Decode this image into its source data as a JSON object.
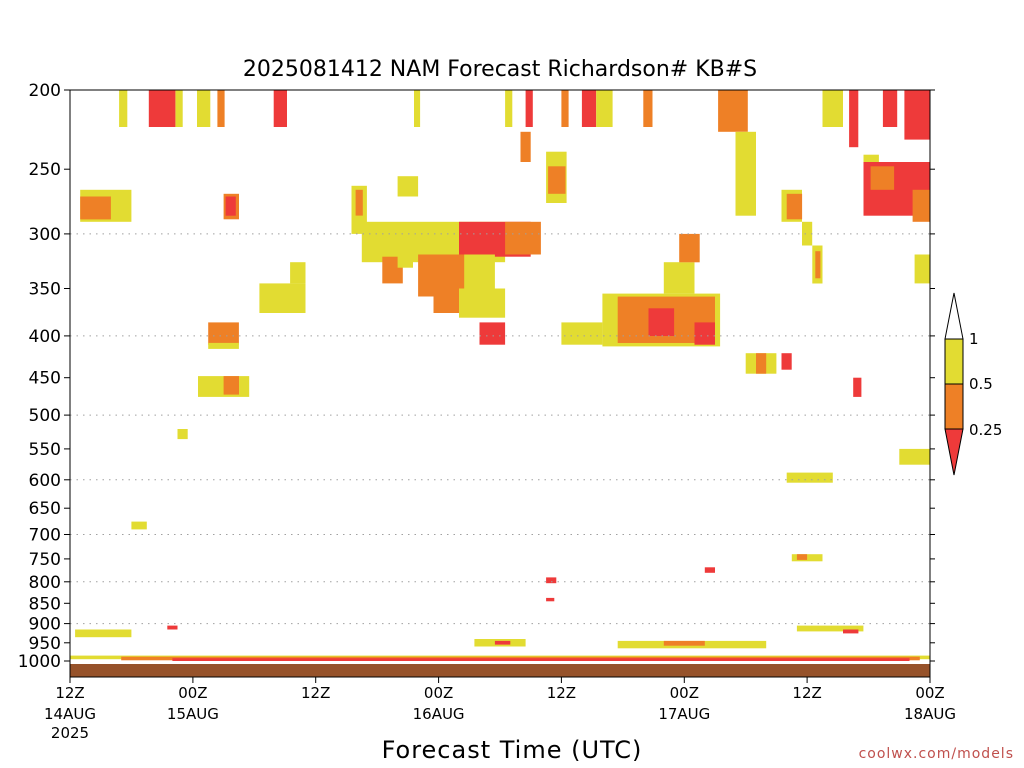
{
  "chart_data": {
    "type": "heatmap",
    "title": "2025081412 NAM Forecast Richardson# KB#S",
    "xlabel": "Forecast Time (UTC)",
    "ylabel": "",
    "y_axis": {
      "reversed": true,
      "ticks": [
        "200",
        "250",
        "300",
        "350",
        "400",
        "450",
        "500",
        "550",
        "600",
        "650",
        "700",
        "750",
        "800",
        "850",
        "900",
        "950",
        "1000"
      ],
      "dotted_grid": [
        "300",
        "400",
        "500",
        "600",
        "700",
        "800",
        "900"
      ]
    },
    "x_axis": {
      "range_hours": [
        0,
        84
      ],
      "ticks": [
        {
          "hour": 0,
          "label": "12Z",
          "date": "14AUG",
          "year": "2025"
        },
        {
          "hour": 12,
          "label": "00Z",
          "date": "15AUG",
          "year": ""
        },
        {
          "hour": 24,
          "label": "12Z",
          "date": "",
          "year": ""
        },
        {
          "hour": 36,
          "label": "00Z",
          "date": "16AUG",
          "year": ""
        },
        {
          "hour": 48,
          "label": "12Z",
          "date": "",
          "year": ""
        },
        {
          "hour": 60,
          "label": "00Z",
          "date": "17AUG",
          "year": ""
        },
        {
          "hour": 72,
          "label": "12Z",
          "date": "",
          "year": ""
        },
        {
          "hour": 84,
          "label": "00Z",
          "date": "18AUG",
          "year": ""
        }
      ]
    },
    "colorbar": {
      "labels": [
        "1",
        "0.5",
        "0.25"
      ],
      "bins": [
        {
          "range": "0.5-1",
          "color": "#e2dc32"
        },
        {
          "range": "0.25-0.5",
          "color": "#ee8026"
        },
        {
          "range": "<0.25",
          "color": "#ee3a3a"
        }
      ],
      "over_color": "#ffffff"
    },
    "ground_color": "#96522a",
    "regions": [
      {
        "level": "yellow",
        "x": [
          4.8,
          5.6
        ],
        "p": [
          200,
          222
        ]
      },
      {
        "level": "red",
        "x": [
          7.7,
          10.3
        ],
        "p": [
          200,
          222
        ]
      },
      {
        "level": "yellow",
        "x": [
          10.3,
          11.0
        ],
        "p": [
          200,
          222
        ]
      },
      {
        "level": "yellow",
        "x": [
          12.4,
          13.7
        ],
        "p": [
          200,
          222
        ]
      },
      {
        "level": "orange",
        "x": [
          14.4,
          15.1
        ],
        "p": [
          200,
          222
        ]
      },
      {
        "level": "red",
        "x": [
          19.9,
          21.2
        ],
        "p": [
          200,
          222
        ]
      },
      {
        "level": "yellow",
        "x": [
          33.6,
          34.2
        ],
        "p": [
          200,
          222
        ]
      },
      {
        "level": "yellow",
        "x": [
          42.5,
          43.2
        ],
        "p": [
          200,
          222
        ]
      },
      {
        "level": "red",
        "x": [
          44.5,
          45.2
        ],
        "p": [
          200,
          222
        ]
      },
      {
        "level": "orange",
        "x": [
          48.0,
          48.7
        ],
        "p": [
          200,
          222
        ]
      },
      {
        "level": "red",
        "x": [
          50.0,
          51.4
        ],
        "p": [
          200,
          222
        ]
      },
      {
        "level": "yellow",
        "x": [
          51.4,
          53.0
        ],
        "p": [
          200,
          222
        ]
      },
      {
        "level": "orange",
        "x": [
          56.0,
          56.9
        ],
        "p": [
          200,
          222
        ]
      },
      {
        "level": "orange",
        "x": [
          63.3,
          66.2
        ],
        "p": [
          200,
          225
        ]
      },
      {
        "level": "yellow",
        "x": [
          73.5,
          75.5
        ],
        "p": [
          200,
          222
        ]
      },
      {
        "level": "red",
        "x": [
          76.1,
          77.0
        ],
        "p": [
          200,
          235
        ]
      },
      {
        "level": "red",
        "x": [
          79.4,
          80.8
        ],
        "p": [
          200,
          222
        ]
      },
      {
        "level": "red",
        "x": [
          81.5,
          84.0
        ],
        "p": [
          200,
          230
        ]
      },
      {
        "level": "yellow",
        "x": [
          65.0,
          67.0
        ],
        "p": [
          225,
          285
        ]
      },
      {
        "level": "orange",
        "x": [
          44.0,
          45.0
        ],
        "p": [
          225,
          245
        ]
      },
      {
        "level": "yellow",
        "x": [
          46.5,
          48.5
        ],
        "p": [
          238,
          275
        ]
      },
      {
        "level": "orange",
        "x": [
          46.7,
          48.4
        ],
        "p": [
          248,
          268
        ]
      },
      {
        "level": "yellow",
        "x": [
          1.0,
          6.0
        ],
        "p": [
          265,
          290
        ]
      },
      {
        "level": "orange",
        "x": [
          1.0,
          4.0
        ],
        "p": [
          270,
          288
        ]
      },
      {
        "level": "orange",
        "x": [
          15.0,
          16.5
        ],
        "p": [
          268,
          288
        ]
      },
      {
        "level": "red",
        "x": [
          15.2,
          16.2
        ],
        "p": [
          270,
          285
        ]
      },
      {
        "level": "yellow",
        "x": [
          27.5,
          29.0
        ],
        "p": [
          262,
          300
        ]
      },
      {
        "level": "orange",
        "x": [
          27.9,
          28.6
        ],
        "p": [
          265,
          285
        ]
      },
      {
        "level": "yellow",
        "x": [
          32.0,
          34.0
        ],
        "p": [
          255,
          270
        ]
      },
      {
        "level": "yellow",
        "x": [
          28.5,
          42.5
        ],
        "p": [
          290,
          325
        ]
      },
      {
        "level": "red",
        "x": [
          38.0,
          45.0
        ],
        "p": [
          290,
          320
        ]
      },
      {
        "level": "orange",
        "x": [
          42.5,
          46.0
        ],
        "p": [
          290,
          318
        ]
      },
      {
        "level": "yellow",
        "x": [
          36.0,
          41.5
        ],
        "p": [
          318,
          350
        ]
      },
      {
        "level": "orange",
        "x": [
          34.0,
          38.5
        ],
        "p": [
          318,
          358
        ]
      },
      {
        "level": "orange",
        "x": [
          35.5,
          39.0
        ],
        "p": [
          355,
          375
        ]
      },
      {
        "level": "yellow",
        "x": [
          38.0,
          42.5
        ],
        "p": [
          350,
          380
        ]
      },
      {
        "level": "red",
        "x": [
          40.0,
          42.5
        ],
        "p": [
          385,
          410
        ]
      },
      {
        "level": "orange",
        "x": [
          30.5,
          32.5
        ],
        "p": [
          320,
          345
        ]
      },
      {
        "level": "yellow",
        "x": [
          32.0,
          33.5
        ],
        "p": [
          300,
          330
        ]
      },
      {
        "level": "yellow",
        "x": [
          18.5,
          23.0
        ],
        "p": [
          345,
          375
        ]
      },
      {
        "level": "yellow",
        "x": [
          21.5,
          23.0
        ],
        "p": [
          325,
          345
        ]
      },
      {
        "level": "orange",
        "x": [
          13.5,
          16.5
        ],
        "p": [
          385,
          410
        ]
      },
      {
        "level": "yellow",
        "x": [
          13.5,
          16.5
        ],
        "p": [
          408,
          415
        ]
      },
      {
        "level": "yellow",
        "x": [
          12.5,
          17.5
        ],
        "p": [
          448,
          475
        ]
      },
      {
        "level": "orange",
        "x": [
          15.0,
          16.5
        ],
        "p": [
          448,
          472
        ]
      },
      {
        "level": "yellow",
        "x": [
          48.0,
          52.0
        ],
        "p": [
          385,
          410
        ]
      },
      {
        "level": "yellow",
        "x": [
          52.0,
          63.5
        ],
        "p": [
          355,
          412
        ]
      },
      {
        "level": "orange",
        "x": [
          53.5,
          63.0
        ],
        "p": [
          358,
          408
        ]
      },
      {
        "level": "red",
        "x": [
          56.5,
          59.0
        ],
        "p": [
          370,
          400
        ]
      },
      {
        "level": "red",
        "x": [
          61.0,
          63.0
        ],
        "p": [
          385,
          410
        ]
      },
      {
        "level": "yellow",
        "x": [
          58.0,
          61.0
        ],
        "p": [
          325,
          355
        ]
      },
      {
        "level": "orange",
        "x": [
          59.5,
          61.5
        ],
        "p": [
          300,
          325
        ]
      },
      {
        "level": "yellow",
        "x": [
          69.5,
          71.5
        ],
        "p": [
          265,
          290
        ]
      },
      {
        "level": "orange",
        "x": [
          70.0,
          71.5
        ],
        "p": [
          268,
          288
        ]
      },
      {
        "level": "yellow",
        "x": [
          71.5,
          72.5
        ],
        "p": [
          290,
          310
        ]
      },
      {
        "level": "yellow",
        "x": [
          72.5,
          73.5
        ],
        "p": [
          310,
          345
        ]
      },
      {
        "level": "orange",
        "x": [
          72.8,
          73.3
        ],
        "p": [
          315,
          340
        ]
      },
      {
        "level": "yellow",
        "x": [
          77.5,
          79.0
        ],
        "p": [
          240,
          262
        ]
      },
      {
        "level": "red",
        "x": [
          77.5,
          84.0
        ],
        "p": [
          245,
          285
        ]
      },
      {
        "level": "orange",
        "x": [
          78.2,
          80.5
        ],
        "p": [
          248,
          265
        ]
      },
      {
        "level": "orange",
        "x": [
          82.3,
          84.0
        ],
        "p": [
          265,
          290
        ]
      },
      {
        "level": "yellow",
        "x": [
          82.5,
          84.0
        ],
        "p": [
          318,
          345
        ]
      },
      {
        "level": "yellow",
        "x": [
          66.0,
          69.0
        ],
        "p": [
          420,
          445
        ]
      },
      {
        "level": "orange",
        "x": [
          67.0,
          68.0
        ],
        "p": [
          420,
          445
        ]
      },
      {
        "level": "red",
        "x": [
          69.5,
          70.5
        ],
        "p": [
          420,
          440
        ]
      },
      {
        "level": "red",
        "x": [
          76.5,
          77.3
        ],
        "p": [
          450,
          475
        ]
      },
      {
        "level": "yellow",
        "x": [
          81.0,
          84.0
        ],
        "p": [
          550,
          575
        ]
      },
      {
        "level": "yellow",
        "x": [
          70.0,
          74.5
        ],
        "p": [
          588,
          605
        ]
      },
      {
        "level": "yellow",
        "x": [
          6.0,
          7.5
        ],
        "p": [
          675,
          690
        ]
      },
      {
        "level": "yellow",
        "x": [
          10.5,
          11.5
        ],
        "p": [
          520,
          535
        ]
      },
      {
        "level": "yellow",
        "x": [
          70.5,
          73.5
        ],
        "p": [
          740,
          755
        ]
      },
      {
        "level": "orange",
        "x": [
          71.0,
          72.0
        ],
        "p": [
          740,
          752
        ]
      },
      {
        "level": "red",
        "x": [
          62.0,
          63.0
        ],
        "p": [
          768,
          780
        ]
      },
      {
        "level": "red",
        "x": [
          46.5,
          47.5
        ],
        "p": [
          790,
          803
        ]
      },
      {
        "level": "red",
        "x": [
          46.5,
          47.3
        ],
        "p": [
          837,
          845
        ]
      },
      {
        "level": "yellow",
        "x": [
          0.5,
          6.0
        ],
        "p": [
          915,
          935
        ]
      },
      {
        "level": "red",
        "x": [
          9.5,
          10.5
        ],
        "p": [
          905,
          915
        ]
      },
      {
        "level": "yellow",
        "x": [
          39.5,
          44.5
        ],
        "p": [
          940,
          960
        ]
      },
      {
        "level": "red",
        "x": [
          41.5,
          43.0
        ],
        "p": [
          945,
          955
        ]
      },
      {
        "level": "yellow",
        "x": [
          53.5,
          68.0
        ],
        "p": [
          945,
          965
        ]
      },
      {
        "level": "orange",
        "x": [
          58.0,
          62.0
        ],
        "p": [
          945,
          958
        ]
      },
      {
        "level": "yellow",
        "x": [
          71.0,
          77.5
        ],
        "p": [
          905,
          920
        ]
      },
      {
        "level": "red",
        "x": [
          75.5,
          77.0
        ],
        "p": [
          915,
          925
        ]
      },
      {
        "level": "yellow",
        "x": [
          0.0,
          84.0
        ],
        "p": [
          985,
          995
        ]
      },
      {
        "level": "orange",
        "x": [
          5.0,
          83.0
        ],
        "p": [
          988,
          998
        ]
      },
      {
        "level": "red",
        "x": [
          10.0,
          82.0
        ],
        "p": [
          992,
          1000
        ]
      }
    ]
  },
  "watermark": "coolwx.com/models"
}
